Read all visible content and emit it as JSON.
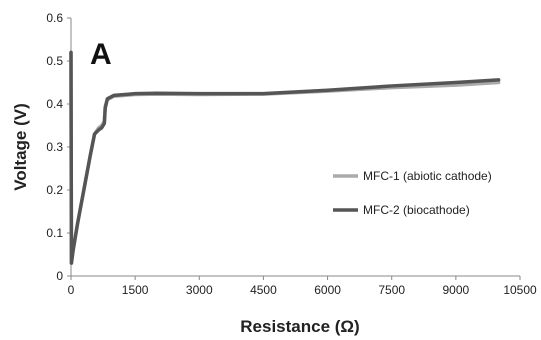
{
  "chart_data": {
    "type": "line",
    "panel_label": "A",
    "xlabel": "Resistance (Ω)",
    "ylabel": "Voltage (V)",
    "xlim": [
      0,
      10500
    ],
    "ylim": [
      0,
      0.6
    ],
    "x_ticks": [
      0,
      1500,
      3000,
      4500,
      6000,
      7500,
      9000,
      10500
    ],
    "y_ticks": [
      0,
      0.1,
      0.2,
      0.3,
      0.4,
      0.5,
      0.6
    ],
    "y_tick_labels": [
      "0",
      "0.1",
      "0.2",
      "0.3",
      "0.4",
      "0.5",
      "0.6"
    ],
    "grid": false,
    "legend_position": "right",
    "series": [
      {
        "name": "MFC-1 (abiotic cathode)",
        "color": "#aaaaaa",
        "points": [
          [
            0,
            0.52
          ],
          [
            10,
            0.03
          ],
          [
            50,
            0.06
          ],
          [
            150,
            0.12
          ],
          [
            300,
            0.2
          ],
          [
            450,
            0.28
          ],
          [
            550,
            0.33
          ],
          [
            650,
            0.345
          ],
          [
            720,
            0.35
          ],
          [
            780,
            0.36
          ],
          [
            800,
            0.395
          ],
          [
            850,
            0.41
          ],
          [
            1000,
            0.418
          ],
          [
            1500,
            0.422
          ],
          [
            2000,
            0.423
          ],
          [
            3000,
            0.422
          ],
          [
            4500,
            0.423
          ],
          [
            6000,
            0.43
          ],
          [
            7500,
            0.438
          ],
          [
            9000,
            0.444
          ],
          [
            10000,
            0.45
          ]
        ]
      },
      {
        "name": "MFC-2 (biocathode)",
        "color": "#555555",
        "points": [
          [
            0,
            0.52
          ],
          [
            10,
            0.03
          ],
          [
            50,
            0.06
          ],
          [
            150,
            0.12
          ],
          [
            300,
            0.2
          ],
          [
            450,
            0.28
          ],
          [
            550,
            0.33
          ],
          [
            650,
            0.34
          ],
          [
            720,
            0.345
          ],
          [
            780,
            0.355
          ],
          [
            800,
            0.39
          ],
          [
            850,
            0.412
          ],
          [
            1000,
            0.42
          ],
          [
            1500,
            0.424
          ],
          [
            2000,
            0.425
          ],
          [
            3000,
            0.424
          ],
          [
            4500,
            0.424
          ],
          [
            6000,
            0.432
          ],
          [
            7500,
            0.442
          ],
          [
            9000,
            0.45
          ],
          [
            10000,
            0.456
          ]
        ]
      }
    ]
  }
}
